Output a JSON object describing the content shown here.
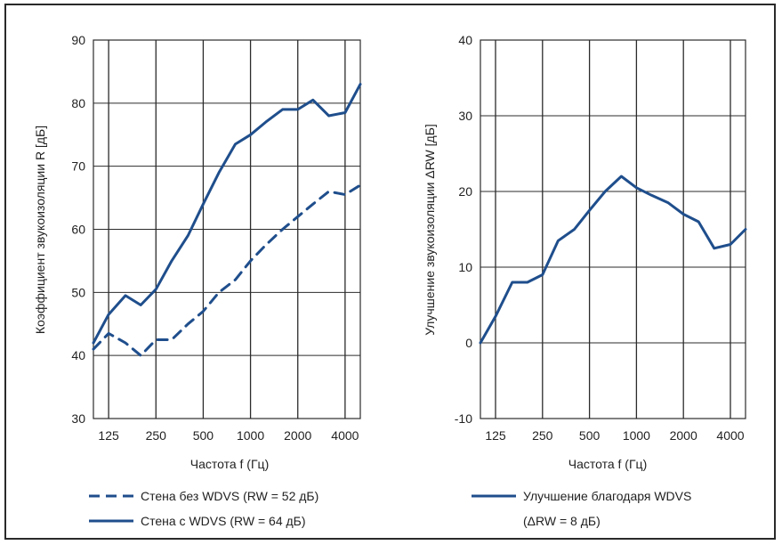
{
  "chart_data": [
    {
      "type": "line",
      "ylabel": "Коэффициент звукоизоляции R [дБ]",
      "xlabel": "Частота f (Гц)",
      "ylim": [
        30,
        90
      ],
      "y_ticks": [
        "30",
        "40",
        "50",
        "60",
        "70",
        "80",
        "90"
      ],
      "x_ticks": [
        "125",
        "250",
        "500",
        "1000",
        "2000",
        "4000"
      ],
      "x_scale": "log",
      "xlim": [
        100,
        5000
      ],
      "grid": true,
      "legend_position": "bottom",
      "series": [
        {
          "name": "Стена без WDVS (RW = 52 дБ)",
          "style": "dashed",
          "color": "#1f4e8c",
          "x": [
            100,
            125,
            160,
            200,
            250,
            315,
            400,
            500,
            630,
            800,
            1000,
            1250,
            1600,
            2000,
            2500,
            3150,
            4000,
            5000
          ],
          "y": [
            41,
            43.5,
            42,
            40,
            42.5,
            42.5,
            45,
            47,
            50,
            52,
            55,
            57.5,
            60,
            62,
            64,
            66,
            65.5,
            67
          ]
        },
        {
          "name": "Стена с WDVS (RW = 64 дБ)",
          "style": "solid",
          "color": "#1f4e8c",
          "x": [
            100,
            125,
            160,
            200,
            250,
            315,
            400,
            500,
            630,
            800,
            1000,
            1250,
            1600,
            2000,
            2500,
            3150,
            4000,
            5000
          ],
          "y": [
            42,
            46.5,
            49.5,
            48,
            50.5,
            55,
            59,
            64,
            69,
            73.5,
            75,
            77,
            79,
            79,
            80.5,
            78,
            78.5,
            83
          ]
        }
      ]
    },
    {
      "type": "line",
      "ylabel": "Улучшение звукоизоляции   ΔRW [дБ]",
      "xlabel": "Частота f (Гц)",
      "ylim": [
        -10,
        40
      ],
      "y_ticks": [
        "-10",
        "0",
        "10",
        "20",
        "30",
        "40"
      ],
      "x_ticks": [
        "125",
        "250",
        "500",
        "1000",
        "2000",
        "4000"
      ],
      "x_scale": "log",
      "xlim": [
        100,
        5000
      ],
      "grid": true,
      "legend_position": "bottom",
      "series": [
        {
          "name": "Улучшение благодаря WDVS",
          "name_line2": "(ΔRW = 8 дБ)",
          "style": "solid",
          "color": "#1f4e8c",
          "x": [
            100,
            125,
            160,
            200,
            250,
            315,
            400,
            500,
            630,
            800,
            1000,
            1250,
            1600,
            2000,
            2500,
            3150,
            4000,
            5000
          ],
          "y": [
            0,
            3.5,
            8,
            8,
            9,
            13.5,
            15,
            17.5,
            20,
            22,
            20.5,
            19.5,
            18.5,
            17,
            16,
            12.5,
            13,
            15
          ]
        }
      ]
    }
  ]
}
